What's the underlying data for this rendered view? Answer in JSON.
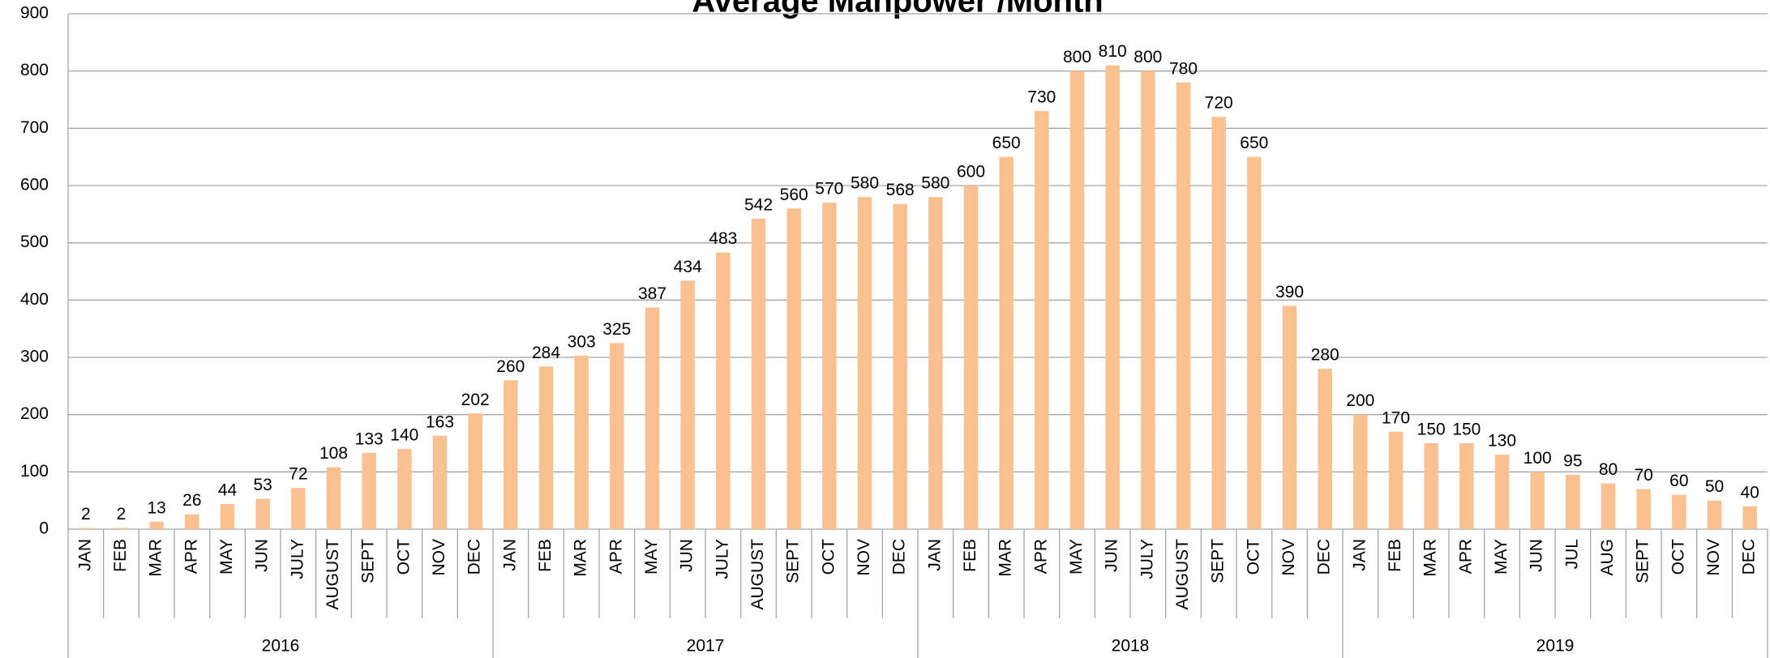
{
  "chart_data": {
    "type": "bar",
    "title": "Average Manpower /Month",
    "categories": [
      "JAN",
      "FEB",
      "MAR",
      "APR",
      "MAY",
      "JUN",
      "JULY",
      "AUGUST",
      "SEPT",
      "OCT",
      "NOV",
      "DEC",
      "JAN",
      "FEB",
      "MAR",
      "APR",
      "MAY",
      "JUN",
      "JULY",
      "AUGUST",
      "SEPT",
      "OCT",
      "NOV",
      "DEC",
      "JAN",
      "FEB",
      "MAR",
      "APR",
      "MAY",
      "JUN",
      "JULY",
      "AUGUST",
      "SEPT",
      "OCT",
      "NOV",
      "DEC",
      "JAN",
      "FEB",
      "MAR",
      "APR",
      "MAY",
      "JUN",
      "JUL",
      "AUG",
      "SEPT",
      "OCT",
      "NOV",
      "DEC"
    ],
    "groups": [
      "2016",
      "2017",
      "2018",
      "2019"
    ],
    "values": [
      2,
      2,
      13,
      26,
      44,
      53,
      72,
      108,
      133,
      140,
      163,
      202,
      260,
      284,
      303,
      325,
      387,
      434,
      483,
      542,
      560,
      570,
      580,
      568,
      580,
      600,
      650,
      730,
      800,
      810,
      800,
      780,
      720,
      650,
      390,
      280,
      200,
      170,
      150,
      150,
      130,
      100,
      95,
      80,
      70,
      60,
      50,
      40
    ],
    "color": "#fac090",
    "ylim": [
      0,
      900
    ],
    "yticks": [
      0,
      100,
      200,
      300,
      400,
      500,
      600,
      700,
      800,
      900
    ],
    "grid": true
  }
}
